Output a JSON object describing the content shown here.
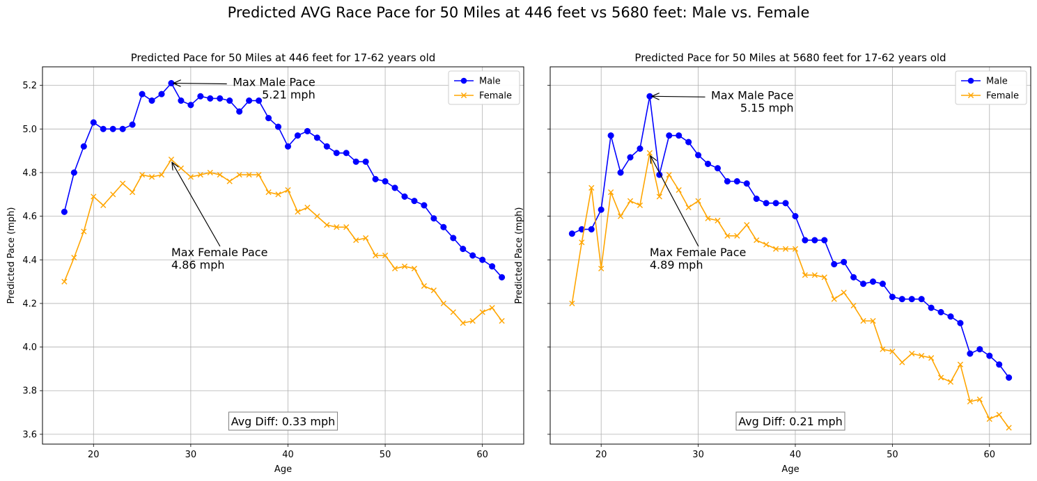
{
  "figure": {
    "suptitle": "Predicted AVG Race Pace for 50 Miles at 446 feet vs 5680 feet: Male vs. Female"
  },
  "chart_data": [
    {
      "type": "line",
      "title": "Predicted Pace for 50 Miles at 446 feet for 17-62 years old",
      "xlabel": "Age",
      "ylabel": "Predicted Pace (mph)",
      "xlim": [
        14.75,
        64.25
      ],
      "ylim": [
        3.555,
        5.285
      ],
      "xticks": [
        20,
        30,
        40,
        50,
        60
      ],
      "yticks": [
        3.6,
        3.8,
        4.0,
        4.2,
        4.4,
        4.6,
        4.8,
        5.0,
        5.2
      ],
      "ytick_labels": [
        "3.6",
        "3.8",
        "4.0",
        "4.2",
        "4.4",
        "4.6",
        "4.8",
        "5.0",
        "5.2"
      ],
      "grid": true,
      "legend_position": "top-right",
      "x": [
        17,
        18,
        19,
        20,
        21,
        22,
        23,
        24,
        25,
        26,
        27,
        28,
        29,
        30,
        31,
        32,
        33,
        34,
        35,
        36,
        37,
        38,
        39,
        40,
        41,
        42,
        43,
        44,
        45,
        46,
        47,
        48,
        49,
        50,
        51,
        52,
        53,
        54,
        55,
        56,
        57,
        58,
        59,
        60,
        61,
        62
      ],
      "series": [
        {
          "name": "Male",
          "color": "#0000ff",
          "marker": "circle",
          "values": [
            4.62,
            4.8,
            4.92,
            5.03,
            5.0,
            5.0,
            5.0,
            5.02,
            5.16,
            5.13,
            5.16,
            5.21,
            5.13,
            5.11,
            5.15,
            5.14,
            5.14,
            5.13,
            5.08,
            5.13,
            5.13,
            5.05,
            5.01,
            4.92,
            4.97,
            4.99,
            4.96,
            4.92,
            4.89,
            4.89,
            4.85,
            4.85,
            4.77,
            4.76,
            4.73,
            4.69,
            4.67,
            4.65,
            4.59,
            4.55,
            4.5,
            4.45,
            4.42,
            4.4,
            4.37,
            4.32
          ]
        },
        {
          "name": "Female",
          "color": "#ffa500",
          "marker": "x",
          "values": [
            4.3,
            4.41,
            4.53,
            4.69,
            4.65,
            4.7,
            4.75,
            4.71,
            4.79,
            4.78,
            4.79,
            4.86,
            4.82,
            4.78,
            4.79,
            4.8,
            4.79,
            4.76,
            4.79,
            4.79,
            4.79,
            4.71,
            4.7,
            4.72,
            4.62,
            4.64,
            4.6,
            4.56,
            4.55,
            4.55,
            4.49,
            4.5,
            4.42,
            4.42,
            4.36,
            4.37,
            4.36,
            4.28,
            4.26,
            4.2,
            4.16,
            4.11,
            4.12,
            4.16,
            4.18,
            4.12
          ]
        }
      ],
      "annotations": [
        {
          "line1": "Max Male Pace",
          "line2": "5.21 mph",
          "point": [
            28,
            5.21
          ],
          "text_pos": [
            34,
            5.21
          ],
          "align": "right"
        },
        {
          "line1": "Max Female Pace",
          "line2": "4.86 mph",
          "point": [
            28,
            4.86
          ],
          "text_pos": [
            28,
            4.43
          ],
          "align": "left"
        }
      ],
      "avg_diff": "Avg Diff: 0.33 mph"
    },
    {
      "type": "line",
      "title": "Predicted Pace for 50 Miles at 5680 feet for 17-62 years old",
      "xlabel": "Age",
      "ylabel": "Predicted Pace (mph)",
      "xlim": [
        14.75,
        64.25
      ],
      "ylim": [
        3.555,
        5.285
      ],
      "xticks": [
        20,
        30,
        40,
        50,
        60
      ],
      "yticks": [
        3.6,
        3.8,
        4.0,
        4.2,
        4.4,
        4.6,
        4.8,
        5.0,
        5.2
      ],
      "ytick_labels": [],
      "grid": true,
      "legend_position": "top-right",
      "x": [
        17,
        18,
        19,
        20,
        21,
        22,
        23,
        24,
        25,
        26,
        27,
        28,
        29,
        30,
        31,
        32,
        33,
        34,
        35,
        36,
        37,
        38,
        39,
        40,
        41,
        42,
        43,
        44,
        45,
        46,
        47,
        48,
        49,
        50,
        51,
        52,
        53,
        54,
        55,
        56,
        57,
        58,
        59,
        60,
        61,
        62
      ],
      "series": [
        {
          "name": "Male",
          "color": "#0000ff",
          "marker": "circle",
          "values": [
            4.52,
            4.54,
            4.54,
            4.63,
            4.97,
            4.8,
            4.87,
            4.91,
            5.15,
            4.79,
            4.97,
            4.97,
            4.94,
            4.88,
            4.84,
            4.82,
            4.76,
            4.76,
            4.75,
            4.68,
            4.66,
            4.66,
            4.66,
            4.6,
            4.49,
            4.49,
            4.49,
            4.38,
            4.39,
            4.32,
            4.29,
            4.3,
            4.29,
            4.23,
            4.22,
            4.22,
            4.22,
            4.18,
            4.16,
            4.14,
            4.11,
            3.97,
            3.99,
            3.96,
            3.92,
            3.86
          ]
        },
        {
          "name": "Female",
          "color": "#ffa500",
          "marker": "x",
          "values": [
            4.2,
            4.48,
            4.73,
            4.36,
            4.71,
            4.6,
            4.67,
            4.65,
            4.89,
            4.69,
            4.79,
            4.72,
            4.64,
            4.67,
            4.59,
            4.58,
            4.51,
            4.51,
            4.56,
            4.49,
            4.47,
            4.45,
            4.45,
            4.45,
            4.33,
            4.33,
            4.32,
            4.22,
            4.25,
            4.19,
            4.12,
            4.12,
            3.99,
            3.98,
            3.93,
            3.97,
            3.96,
            3.95,
            3.86,
            3.84,
            3.92,
            3.75,
            3.76,
            3.67,
            3.69,
            3.63
          ]
        }
      ],
      "annotations": [
        {
          "line1": "Max Male Pace",
          "line2": "5.15 mph",
          "point": [
            25,
            5.15
          ],
          "text_pos": [
            31,
            5.15
          ],
          "align": "right"
        },
        {
          "line1": "Max Female Pace",
          "line2": "4.89 mph",
          "point": [
            25,
            4.89
          ],
          "text_pos": [
            25,
            4.43
          ],
          "align": "left"
        }
      ],
      "avg_diff": "Avg Diff: 0.21 mph"
    }
  ]
}
